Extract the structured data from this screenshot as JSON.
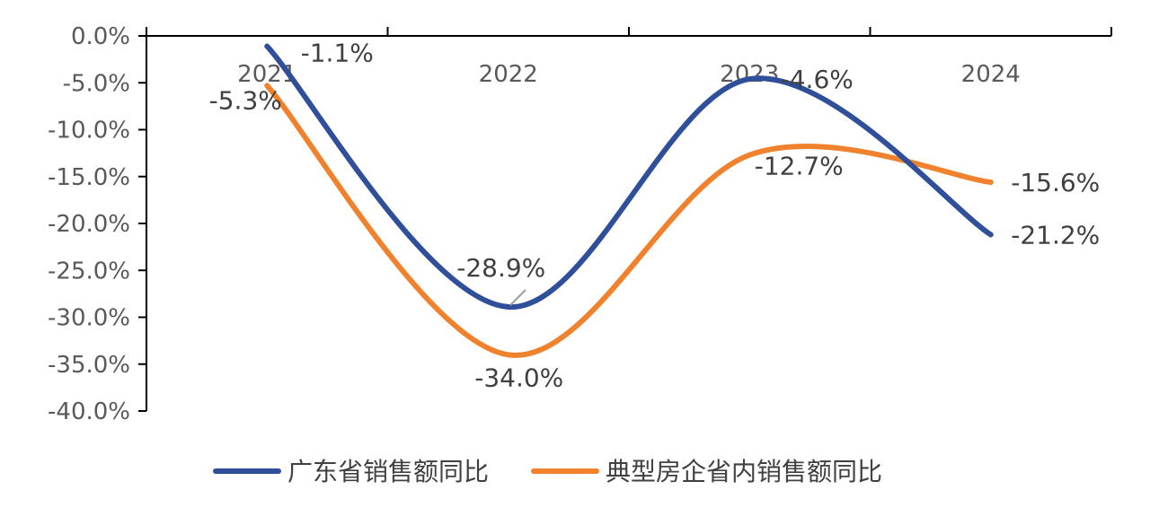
{
  "chart_data": {
    "type": "line",
    "categories": [
      "2021",
      "2022",
      "2023",
      "2024"
    ],
    "series": [
      {
        "name": "广东省销售额同比",
        "color": "#2F4F9A",
        "values": [
          -1.1,
          -28.9,
          -4.6,
          -21.2
        ],
        "labels": [
          "-1.1%",
          "-28.9%",
          "-4.6%",
          "-21.2%"
        ]
      },
      {
        "name": "典型房企省内销售额同比",
        "color": "#F0822E",
        "values": [
          -5.3,
          -34.0,
          -12.7,
          -15.6
        ],
        "labels": [
          "-5.3%",
          "-34.0%",
          "-12.7%",
          "-15.6%"
        ]
      }
    ],
    "ylim": [
      -40,
      0
    ],
    "yticks": [
      "0.0%",
      "-5.0%",
      "-10.0%",
      "-15.0%",
      "-20.0%",
      "-25.0%",
      "-30.0%",
      "-35.0%",
      "-40.0%"
    ],
    "xlabel": "",
    "ylabel": "",
    "title": "",
    "grid": false,
    "legend_position": "bottom",
    "smooth": true
  }
}
